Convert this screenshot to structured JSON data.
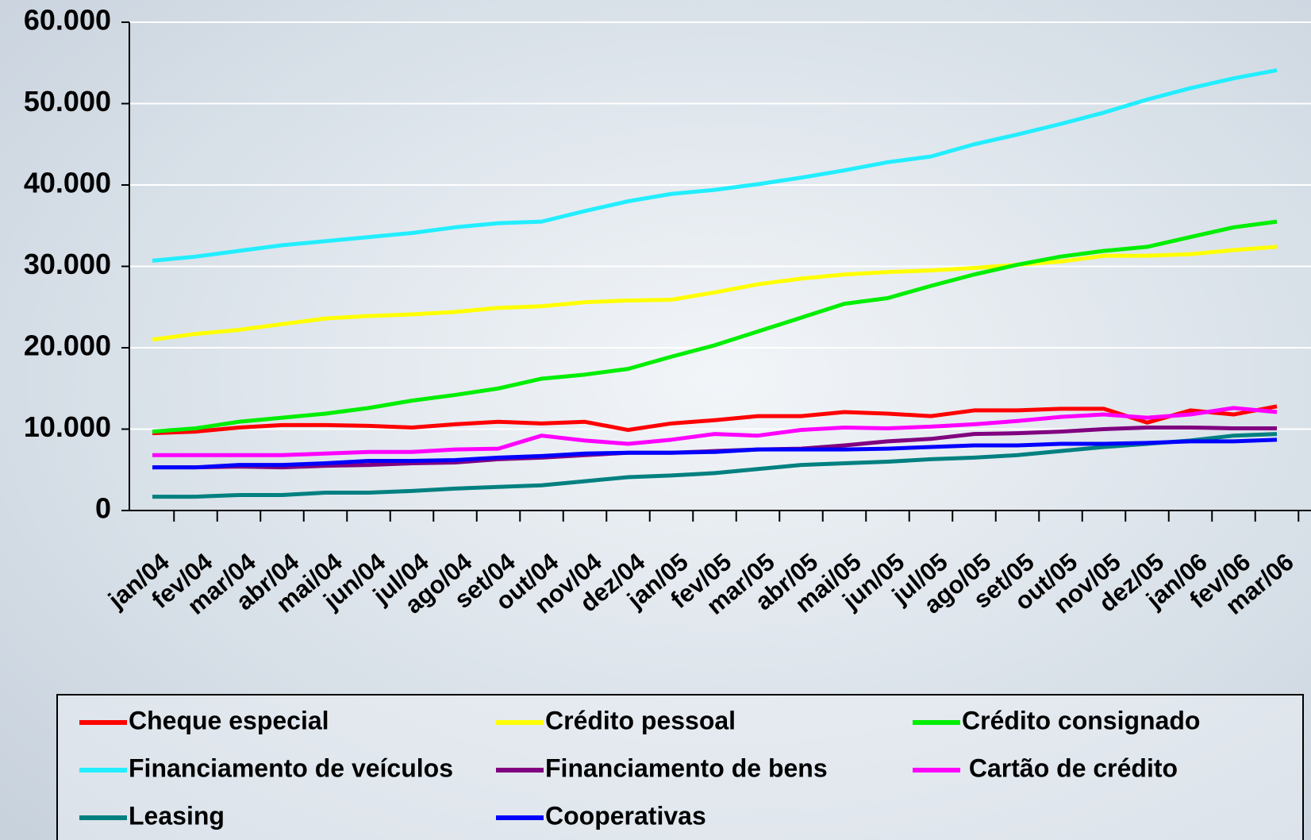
{
  "chart_data": {
    "type": "line",
    "categories": [
      "jan/04",
      "fev/04",
      "mar/04",
      "abr/04",
      "mai/04",
      "jun/04",
      "jul/04",
      "ago/04",
      "set/04",
      "out/04",
      "nov/04",
      "dez/04",
      "jan/05",
      "fev/05",
      "mar/05",
      "abr/05",
      "mai/05",
      "jun/05",
      "jul/05",
      "ago/05",
      "set/05",
      "out/05",
      "nov/05",
      "dez/05",
      "jan/06",
      "fev/06",
      "mar/06"
    ],
    "ylim": [
      0,
      60000
    ],
    "yticks": [
      0,
      {
        "value": 10000,
        "label": "10.000"
      },
      {
        "value": 20000,
        "label": "20.000"
      },
      {
        "value": 30000,
        "label": "30.000"
      },
      {
        "value": 40000,
        "label": "40.000"
      },
      {
        "value": 50000,
        "label": "50.000"
      },
      {
        "value": 60000,
        "label": "60.000"
      }
    ],
    "grid": true,
    "legend": "bottom",
    "series": [
      {
        "name": "Cheque especial",
        "color": "#ff0000",
        "values": [
          9500,
          9700,
          10200,
          10500,
          10500,
          10400,
          10200,
          10600,
          10900,
          10700,
          10900,
          9900,
          10700,
          11100,
          11600,
          11600,
          12100,
          11900,
          11600,
          12300,
          12300,
          12500,
          12500,
          10800,
          12300,
          11800,
          12800
        ]
      },
      {
        "name": "Crédito pessoal",
        "color": "#ffff00",
        "values": [
          21000,
          21700,
          22200,
          22900,
          23600,
          23900,
          24100,
          24400,
          24900,
          25100,
          25600,
          25800,
          25900,
          26800,
          27800,
          28500,
          29000,
          29300,
          29500,
          29800,
          30200,
          30600,
          31300,
          31300,
          31500,
          32000,
          32400
        ]
      },
      {
        "name": "Crédito consignado",
        "color": "#00ee00",
        "values": [
          9700,
          10100,
          10900,
          11400,
          11900,
          12600,
          13500,
          14200,
          15000,
          16200,
          16700,
          17400,
          18900,
          20300,
          22000,
          23700,
          25400,
          26100,
          27600,
          29000,
          30200,
          31200,
          31900,
          32400,
          33600,
          34800,
          35500
        ]
      },
      {
        "name": "Financiamento de veículos",
        "color": "#22eeff",
        "values": [
          30700,
          31200,
          31900,
          32600,
          33100,
          33600,
          34100,
          34800,
          35300,
          35500,
          36800,
          38000,
          38900,
          39400,
          40100,
          40900,
          41800,
          42800,
          43500,
          45000,
          46200,
          47500,
          48900,
          50500,
          51900,
          53100,
          54100
        ]
      },
      {
        "name": "Financiamento de bens",
        "color": "#800080",
        "values": [
          5300,
          5300,
          5400,
          5300,
          5500,
          5600,
          5800,
          5900,
          6300,
          6500,
          6800,
          7100,
          7100,
          7300,
          7500,
          7600,
          8000,
          8500,
          8800,
          9400,
          9500,
          9700,
          10000,
          10200,
          10200,
          10100,
          10100
        ]
      },
      {
        "name": " Cartão de crédito",
        "color": "#ff00ff",
        "values": [
          6800,
          6800,
          6800,
          6800,
          7000,
          7200,
          7200,
          7500,
          7600,
          9200,
          8600,
          8200,
          8700,
          9400,
          9200,
          9900,
          10200,
          10100,
          10300,
          10600,
          11000,
          11500,
          11800,
          11400,
          11800,
          12600,
          12100
        ]
      },
      {
        "name": "Leasing",
        "color": "#008080",
        "values": [
          1700,
          1700,
          1900,
          1900,
          2200,
          2200,
          2400,
          2700,
          2900,
          3100,
          3600,
          4100,
          4300,
          4600,
          5100,
          5600,
          5800,
          6000,
          6300,
          6500,
          6800,
          7300,
          7800,
          8200,
          8600,
          9200,
          9400
        ]
      },
      {
        "name": "Cooperativas",
        "color": "#0000ff",
        "values": [
          5300,
          5300,
          5600,
          5600,
          5800,
          6100,
          6100,
          6200,
          6500,
          6700,
          7000,
          7100,
          7100,
          7200,
          7500,
          7500,
          7500,
          7600,
          7800,
          8000,
          8000,
          8200,
          8200,
          8300,
          8500,
          8500,
          8700
        ]
      }
    ]
  }
}
